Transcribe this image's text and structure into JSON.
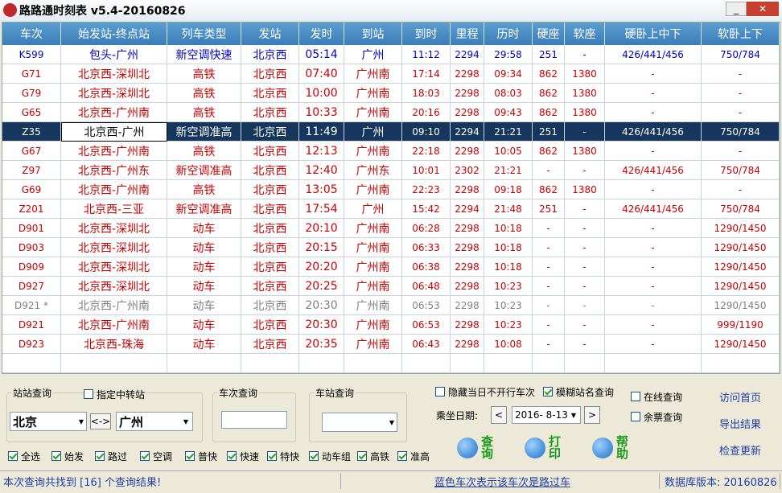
{
  "window": {
    "title": "路路通时刻表 v5.4-20160826"
  },
  "table": {
    "headers": [
      "车次",
      "始发站-终点站",
      "列车类型",
      "发站",
      "发时",
      "到站",
      "到时",
      "里程",
      "历时",
      "硬座",
      "软座",
      "硬卧上中下",
      "软卧上下"
    ],
    "rows": [
      [
        "K599",
        "包头-广州",
        "新空调快速",
        "北京西",
        "05:14",
        "广州",
        "11:12",
        "2294",
        "29:58",
        "251",
        "-",
        "426/441/456",
        "750/784"
      ],
      [
        "G71",
        "北京西-深圳北",
        "高铁",
        "北京西",
        "07:40",
        "广州南",
        "17:14",
        "2298",
        "09:34",
        "862",
        "1380",
        "-",
        "-"
      ],
      [
        "G79",
        "北京西-深圳北",
        "高铁",
        "北京西",
        "10:00",
        "广州南",
        "18:03",
        "2298",
        "08:03",
        "862",
        "1380",
        "-",
        "-"
      ],
      [
        "G65",
        "北京西-广州南",
        "高铁",
        "北京西",
        "10:33",
        "广州南",
        "20:16",
        "2298",
        "09:43",
        "862",
        "1380",
        "-",
        "-"
      ],
      [
        "Z35",
        "北京西-广州",
        "新空调准高",
        "北京西",
        "11:49",
        "广州",
        "09:10",
        "2294",
        "21:21",
        "251",
        "-",
        "426/441/456",
        "750/784"
      ],
      [
        "G67",
        "北京西-广州南",
        "高铁",
        "北京西",
        "12:13",
        "广州南",
        "22:18",
        "2298",
        "10:05",
        "862",
        "1380",
        "-",
        "-"
      ],
      [
        "Z97",
        "北京西-广州东",
        "新空调准高",
        "北京西",
        "12:40",
        "广州东",
        "10:01",
        "2302",
        "21:21",
        "-",
        "-",
        "426/441/456",
        "750/784"
      ],
      [
        "G69",
        "北京西-广州南",
        "高铁",
        "北京西",
        "13:05",
        "广州南",
        "22:23",
        "2298",
        "09:18",
        "862",
        "1380",
        "-",
        "-"
      ],
      [
        "Z201",
        "北京西-三亚",
        "新空调准高",
        "北京西",
        "17:54",
        "广州",
        "15:42",
        "2294",
        "21:48",
        "251",
        "-",
        "426/441/456",
        "750/784"
      ],
      [
        "D901",
        "北京西-深圳北",
        "动车",
        "北京西",
        "20:10",
        "广州南",
        "06:28",
        "2298",
        "10:18",
        "-",
        "-",
        "-",
        "1290/1450"
      ],
      [
        "D903",
        "北京西-深圳北",
        "动车",
        "北京西",
        "20:15",
        "广州南",
        "06:33",
        "2298",
        "10:18",
        "-",
        "-",
        "-",
        "1290/1450"
      ],
      [
        "D909",
        "北京西-深圳北",
        "动车",
        "北京西",
        "20:20",
        "广州南",
        "06:38",
        "2298",
        "10:18",
        "-",
        "-",
        "-",
        "1290/1450"
      ],
      [
        "D927",
        "北京西-深圳北",
        "动车",
        "北京西",
        "20:25",
        "广州南",
        "06:48",
        "2298",
        "10:23",
        "-",
        "-",
        "-",
        "1290/1450"
      ],
      [
        "D921 *",
        "北京西-广州南",
        "动车",
        "北京西",
        "20:30",
        "广州南",
        "06:53",
        "2298",
        "10:23",
        "-",
        "-",
        "-",
        "1290/1450"
      ],
      [
        "D921",
        "北京西-广州南",
        "动车",
        "北京西",
        "20:30",
        "广州南",
        "06:53",
        "2298",
        "10:23",
        "-",
        "-",
        "-",
        "999/1190"
      ],
      [
        "D923",
        "北京西-珠海",
        "动车",
        "北京西",
        "20:35",
        "广州南",
        "06:43",
        "2298",
        "10:08",
        "-",
        "-",
        "-",
        "1290/1450"
      ]
    ],
    "row_colors": [
      "#0000cc",
      "#cc0000",
      "#cc0000",
      "#cc0000",
      "#ffffff",
      "#cc0000",
      "#cc0000",
      "#cc0000",
      "#cc0000",
      "#cc0000",
      "#cc0000",
      "#cc0000",
      "#cc0000",
      "#808080",
      "#cc0000",
      "#cc0000"
    ],
    "selected_row": 4
  },
  "station_query": {
    "title": "站站查询",
    "transfer": {
      "label": "指定中转站",
      "checked": false
    },
    "from": "北京",
    "swap": "<->",
    "to": "广州"
  },
  "train_query": {
    "title": "车次查询"
  },
  "stop_query": {
    "title": "车站查询"
  },
  "options": [
    {
      "label": "隐藏当日不开行车次",
      "checked": false
    },
    {
      "label": "模糊站名查询",
      "checked": true
    }
  ],
  "date": {
    "label": "乘坐日期:",
    "prev": "<",
    "value": "2016- 8-13",
    "next": ">"
  },
  "modes": [
    {
      "label": "在线查询",
      "checked": false
    },
    {
      "label": "余票查询",
      "checked": false
    }
  ],
  "links": [
    "访问首页",
    "导出结果",
    "检查更新"
  ],
  "buttons": [
    "查询",
    "打印",
    "帮助"
  ],
  "filters": [
    {
      "label": "全选",
      "checked": true
    },
    {
      "label": "始发",
      "checked": true
    },
    {
      "label": "路过",
      "checked": true
    },
    {
      "label": "空调",
      "checked": true
    },
    {
      "label": "普快",
      "checked": true
    },
    {
      "label": "快速",
      "checked": true
    },
    {
      "label": "特快",
      "checked": true
    },
    {
      "label": "动车组",
      "checked": true
    },
    {
      "label": "高铁",
      "checked": true
    },
    {
      "label": "准高",
      "checked": true
    }
  ],
  "status": [
    "本次查询共找到 [16] 个查询结果!",
    "蓝色车次表示该车次是路过车",
    "数据库版本: 20160826"
  ]
}
